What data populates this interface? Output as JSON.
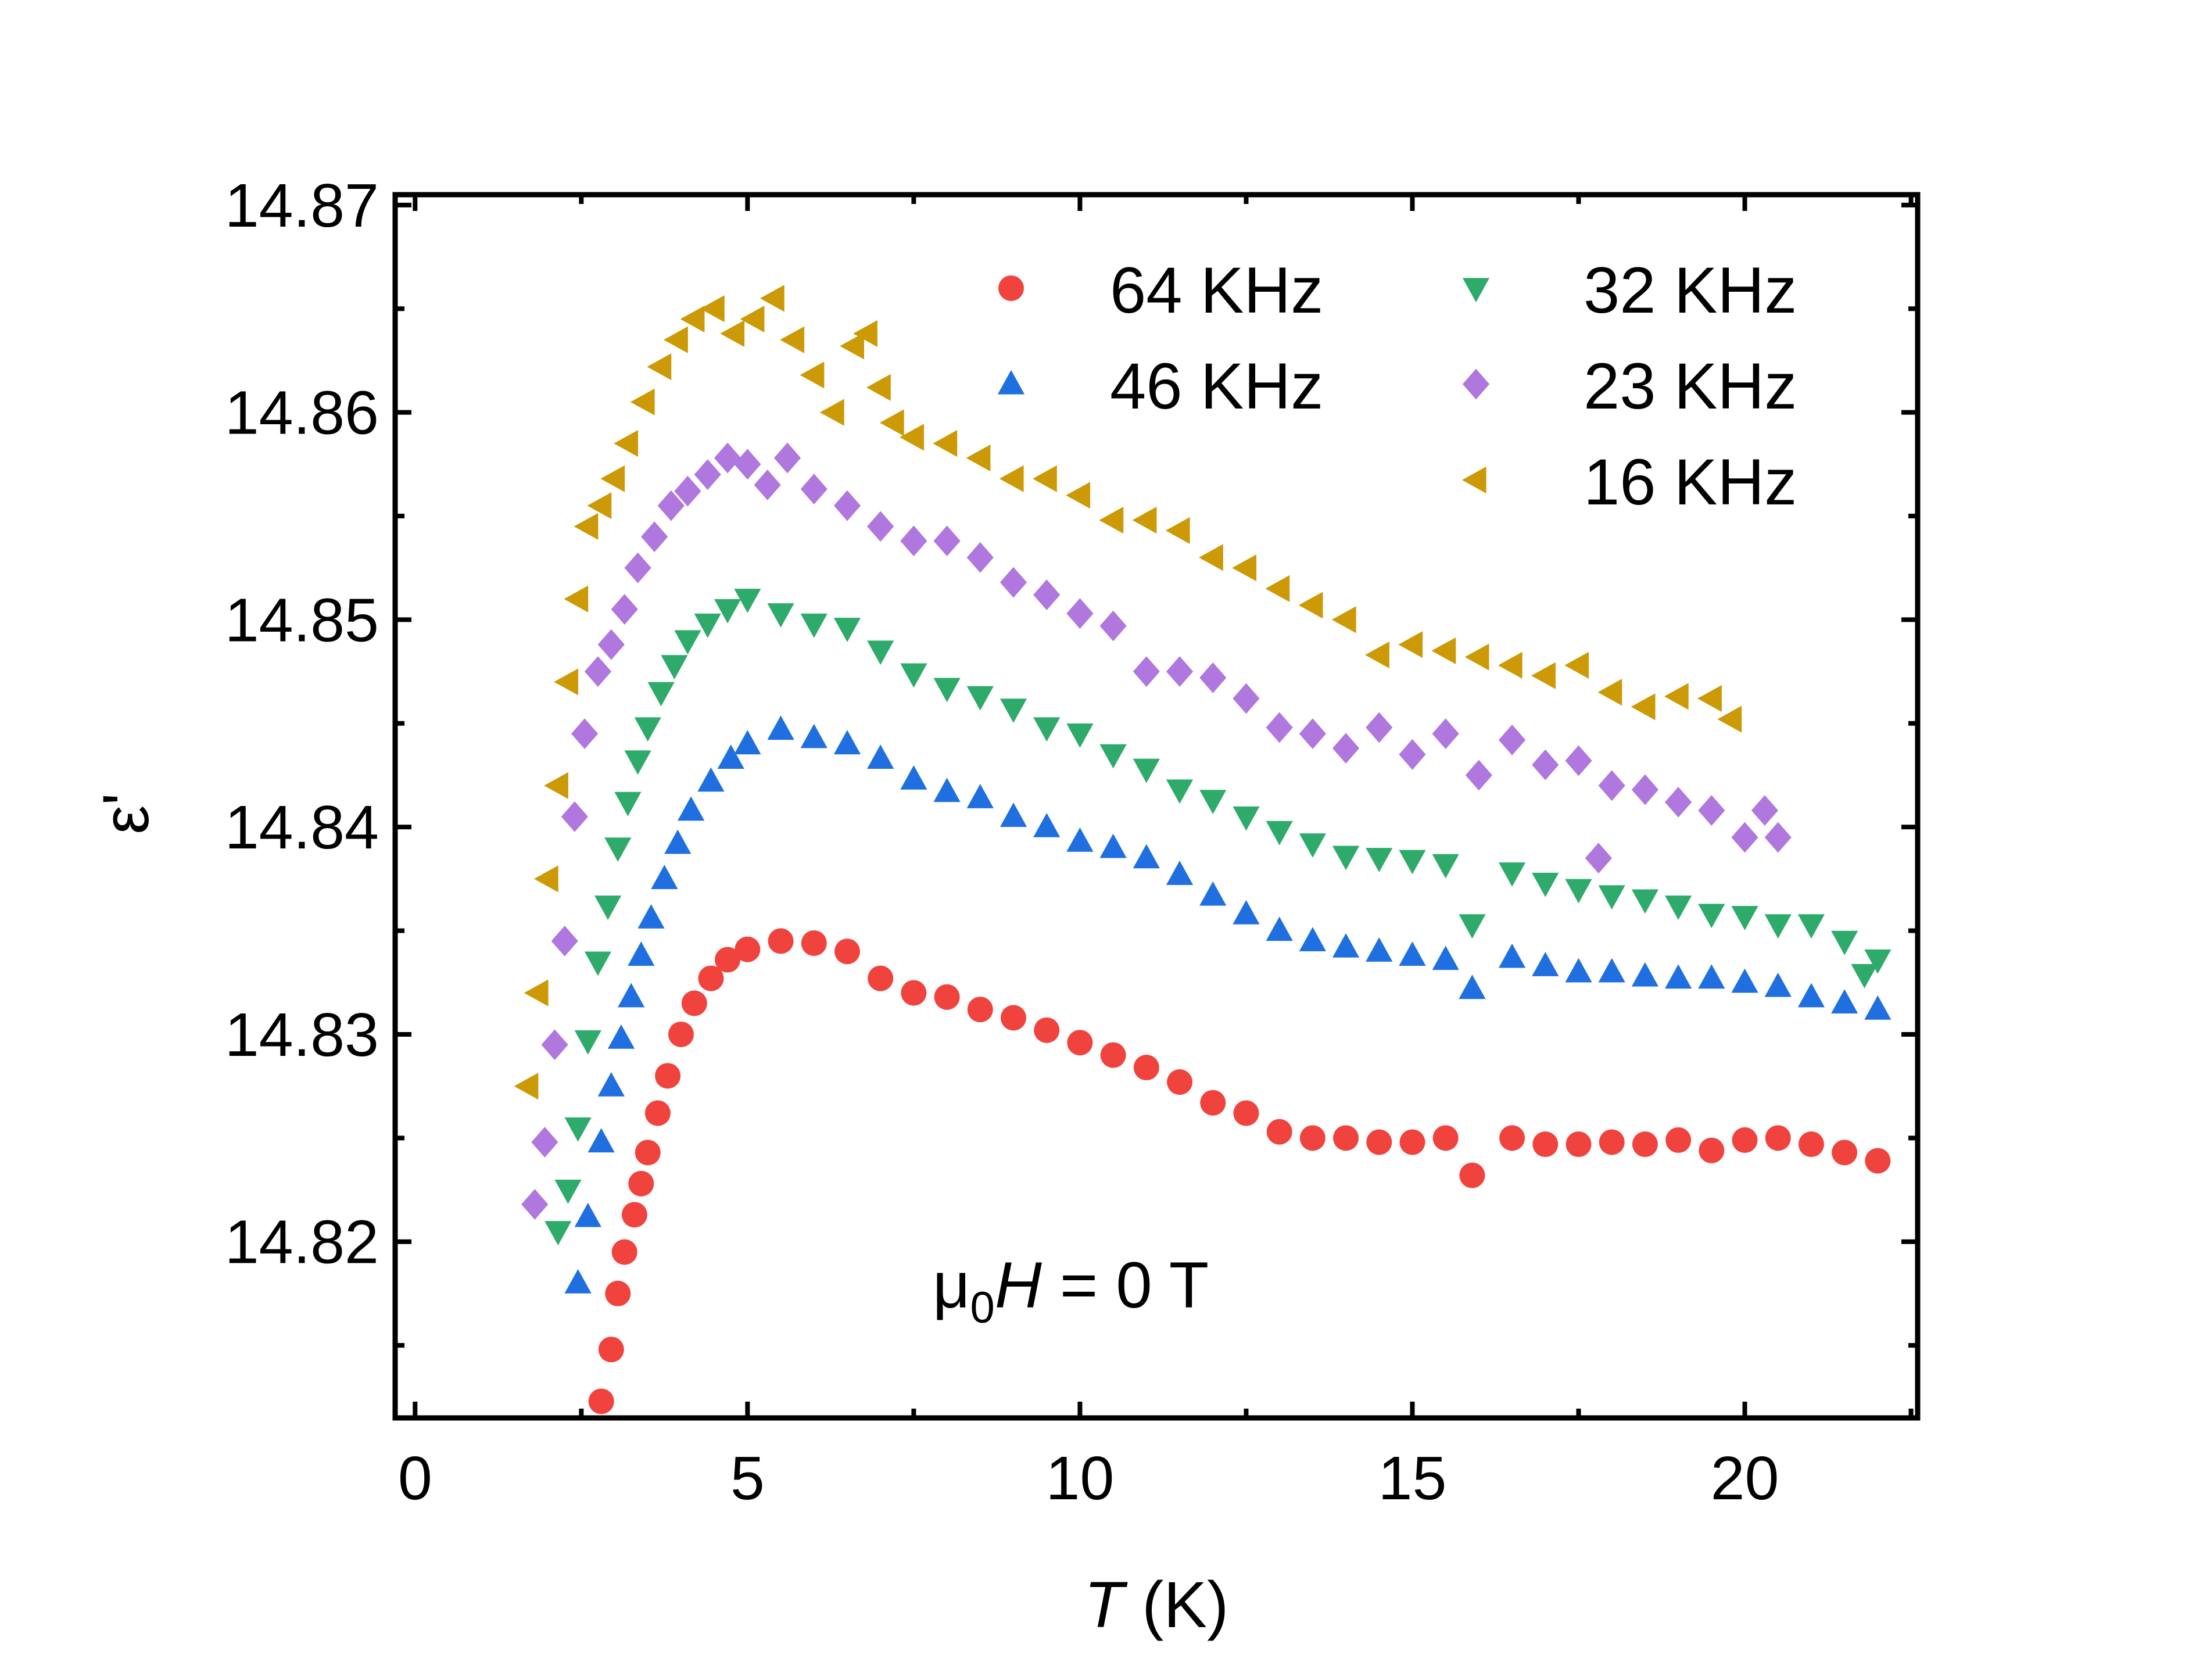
{
  "chart_data": {
    "type": "scatter",
    "xlabel": "T (K)",
    "ylabel": "ε'",
    "xlim": [
      -0.3,
      22.6
    ],
    "ylim": [
      14.8115,
      14.8705
    ],
    "xticks": [
      0,
      5,
      10,
      15,
      20
    ],
    "yticks": [
      14.82,
      14.83,
      14.84,
      14.85,
      14.86,
      14.87
    ],
    "xtick_labels": [
      "0",
      "5",
      "10",
      "15",
      "20"
    ],
    "ytick_labels": [
      "14.82",
      "14.83",
      "14.84",
      "14.85",
      "14.86",
      "14.87"
    ],
    "annotation": {
      "mu": "μ",
      "sub": "0",
      "var": "H",
      "rest": " = 0 T"
    },
    "legend_position": "top-right",
    "series": [
      {
        "name": "64 KHz",
        "marker": "circle",
        "color": "#f0433e",
        "points": [
          [
            2.8,
            14.8123
          ],
          [
            2.95,
            14.8148
          ],
          [
            3.05,
            14.8175
          ],
          [
            3.15,
            14.8195
          ],
          [
            3.3,
            14.8213
          ],
          [
            3.4,
            14.8228
          ],
          [
            3.5,
            14.8243
          ],
          [
            3.65,
            14.8262
          ],
          [
            3.8,
            14.828
          ],
          [
            4.0,
            14.83
          ],
          [
            4.2,
            14.8315
          ],
          [
            4.45,
            14.8327
          ],
          [
            4.7,
            14.8336
          ],
          [
            5.0,
            14.8341
          ],
          [
            5.5,
            14.8345
          ],
          [
            6.0,
            14.8344
          ],
          [
            6.5,
            14.834
          ],
          [
            7.0,
            14.8327
          ],
          [
            7.5,
            14.832
          ],
          [
            8.0,
            14.8318
          ],
          [
            8.5,
            14.8312
          ],
          [
            9.0,
            14.8308
          ],
          [
            9.5,
            14.8302
          ],
          [
            10.0,
            14.8296
          ],
          [
            10.5,
            14.829
          ],
          [
            11.0,
            14.8284
          ],
          [
            11.5,
            14.8277
          ],
          [
            12.0,
            14.8267
          ],
          [
            12.5,
            14.8262
          ],
          [
            13.0,
            14.8253
          ],
          [
            13.5,
            14.825
          ],
          [
            14.0,
            14.825
          ],
          [
            14.5,
            14.8248
          ],
          [
            15.0,
            14.8248
          ],
          [
            15.5,
            14.825
          ],
          [
            15.9,
            14.8232
          ],
          [
            16.5,
            14.825
          ],
          [
            17.0,
            14.8247
          ],
          [
            17.5,
            14.8247
          ],
          [
            18.0,
            14.8248
          ],
          [
            18.5,
            14.8247
          ],
          [
            19.0,
            14.8249
          ],
          [
            19.5,
            14.8244
          ],
          [
            20.0,
            14.8249
          ],
          [
            20.5,
            14.825
          ],
          [
            21.0,
            14.8247
          ],
          [
            21.5,
            14.8243
          ],
          [
            22.0,
            14.8239
          ]
        ]
      },
      {
        "name": "32 KHz",
        "marker": "triangle-down",
        "color": "#2eab6a",
        "points": [
          [
            2.15,
            14.8205
          ],
          [
            2.3,
            14.8225
          ],
          [
            2.45,
            14.8255
          ],
          [
            2.6,
            14.8297
          ],
          [
            2.75,
            14.8335
          ],
          [
            2.9,
            14.8362
          ],
          [
            3.05,
            14.839
          ],
          [
            3.2,
            14.8412
          ],
          [
            3.35,
            14.8432
          ],
          [
            3.5,
            14.8448
          ],
          [
            3.7,
            14.8465
          ],
          [
            3.9,
            14.8478
          ],
          [
            4.1,
            14.849
          ],
          [
            4.4,
            14.8498
          ],
          [
            4.7,
            14.8505
          ],
          [
            5.0,
            14.851
          ],
          [
            5.5,
            14.8503
          ],
          [
            6.0,
            14.8498
          ],
          [
            6.5,
            14.8496
          ],
          [
            7.0,
            14.8485
          ],
          [
            7.5,
            14.8474
          ],
          [
            8.0,
            14.8467
          ],
          [
            8.5,
            14.8463
          ],
          [
            9.0,
            14.8457
          ],
          [
            9.5,
            14.8448
          ],
          [
            10.0,
            14.8445
          ],
          [
            10.5,
            14.8435
          ],
          [
            11.0,
            14.8428
          ],
          [
            11.5,
            14.8418
          ],
          [
            12.0,
            14.8413
          ],
          [
            12.5,
            14.8405
          ],
          [
            13.0,
            14.8398
          ],
          [
            13.5,
            14.8392
          ],
          [
            14.0,
            14.8386
          ],
          [
            14.5,
            14.8385
          ],
          [
            15.0,
            14.8384
          ],
          [
            15.5,
            14.8382
          ],
          [
            15.9,
            14.8353
          ],
          [
            16.5,
            14.8378
          ],
          [
            17.0,
            14.8373
          ],
          [
            17.5,
            14.837
          ],
          [
            18.0,
            14.8367
          ],
          [
            18.5,
            14.8365
          ],
          [
            19.0,
            14.8362
          ],
          [
            19.5,
            14.8358
          ],
          [
            20.0,
            14.8357
          ],
          [
            20.5,
            14.8353
          ],
          [
            21.0,
            14.8353
          ],
          [
            21.5,
            14.8345
          ],
          [
            22.0,
            14.8336
          ],
          [
            21.8,
            14.8329
          ]
        ]
      },
      {
        "name": "46 KHz",
        "marker": "triangle-up",
        "color": "#1f6fe0",
        "points": [
          [
            2.45,
            14.818
          ],
          [
            2.6,
            14.8212
          ],
          [
            2.8,
            14.8248
          ],
          [
            2.95,
            14.8275
          ],
          [
            3.1,
            14.8298
          ],
          [
            3.25,
            14.8318
          ],
          [
            3.4,
            14.8338
          ],
          [
            3.55,
            14.8356
          ],
          [
            3.75,
            14.8375
          ],
          [
            3.95,
            14.8392
          ],
          [
            4.15,
            14.8408
          ],
          [
            4.45,
            14.8422
          ],
          [
            4.75,
            14.8433
          ],
          [
            5.0,
            14.844
          ],
          [
            5.5,
            14.8447
          ],
          [
            6.0,
            14.8443
          ],
          [
            6.5,
            14.844
          ],
          [
            7.0,
            14.8433
          ],
          [
            7.5,
            14.8423
          ],
          [
            8.0,
            14.8417
          ],
          [
            8.5,
            14.8414
          ],
          [
            9.0,
            14.8405
          ],
          [
            9.5,
            14.84
          ],
          [
            10.0,
            14.8393
          ],
          [
            10.5,
            14.839
          ],
          [
            11.0,
            14.8385
          ],
          [
            11.5,
            14.8377
          ],
          [
            12.0,
            14.8367
          ],
          [
            12.5,
            14.8358
          ],
          [
            13.0,
            14.835
          ],
          [
            13.5,
            14.8345
          ],
          [
            14.0,
            14.8342
          ],
          [
            14.5,
            14.834
          ],
          [
            15.0,
            14.8338
          ],
          [
            15.5,
            14.8336
          ],
          [
            15.9,
            14.8322
          ],
          [
            16.5,
            14.8337
          ],
          [
            17.0,
            14.8333
          ],
          [
            17.5,
            14.833
          ],
          [
            18.0,
            14.833
          ],
          [
            18.5,
            14.8328
          ],
          [
            19.0,
            14.8327
          ],
          [
            19.5,
            14.8327
          ],
          [
            20.0,
            14.8325
          ],
          [
            20.5,
            14.8323
          ],
          [
            21.0,
            14.8318
          ],
          [
            21.5,
            14.8315
          ],
          [
            22.0,
            14.8312
          ]
        ]
      },
      {
        "name": "23 KHz",
        "marker": "diamond",
        "color": "#b077de",
        "points": [
          [
            1.8,
            14.8218
          ],
          [
            1.95,
            14.8248
          ],
          [
            2.1,
            14.8295
          ],
          [
            2.25,
            14.8345
          ],
          [
            2.4,
            14.8405
          ],
          [
            2.55,
            14.8445
          ],
          [
            2.75,
            14.8475
          ],
          [
            2.95,
            14.8488
          ],
          [
            3.15,
            14.8505
          ],
          [
            3.35,
            14.8525
          ],
          [
            3.6,
            14.854
          ],
          [
            3.85,
            14.8555
          ],
          [
            4.1,
            14.8562
          ],
          [
            4.4,
            14.857
          ],
          [
            4.7,
            14.8578
          ],
          [
            5.0,
            14.8575
          ],
          [
            5.3,
            14.8565
          ],
          [
            5.6,
            14.8578
          ],
          [
            6.0,
            14.8563
          ],
          [
            6.5,
            14.8555
          ],
          [
            7.0,
            14.8545
          ],
          [
            7.5,
            14.8538
          ],
          [
            8.0,
            14.8538
          ],
          [
            8.5,
            14.853
          ],
          [
            9.0,
            14.8518
          ],
          [
            9.5,
            14.8512
          ],
          [
            10.0,
            14.8503
          ],
          [
            10.5,
            14.8497
          ],
          [
            11.0,
            14.8475
          ],
          [
            11.5,
            14.8475
          ],
          [
            12.0,
            14.8472
          ],
          [
            12.5,
            14.8462
          ],
          [
            13.0,
            14.8448
          ],
          [
            13.5,
            14.8445
          ],
          [
            14.0,
            14.8438
          ],
          [
            14.5,
            14.8448
          ],
          [
            15.0,
            14.8435
          ],
          [
            15.5,
            14.8445
          ],
          [
            16.0,
            14.8425
          ],
          [
            16.5,
            14.8442
          ],
          [
            17.0,
            14.843
          ],
          [
            17.5,
            14.8432
          ],
          [
            17.8,
            14.8385
          ],
          [
            18.0,
            14.842
          ],
          [
            18.5,
            14.8418
          ],
          [
            19.0,
            14.8412
          ],
          [
            19.5,
            14.8408
          ],
          [
            20.0,
            14.8395
          ],
          [
            20.3,
            14.8408
          ],
          [
            20.5,
            14.8395
          ]
        ]
      },
      {
        "name": "16 KHz",
        "marker": "triangle-left",
        "color": "#cc9a06",
        "points": [
          [
            1.7,
            14.8275
          ],
          [
            1.85,
            14.832
          ],
          [
            2.0,
            14.8375
          ],
          [
            2.15,
            14.842
          ],
          [
            2.3,
            14.847
          ],
          [
            2.45,
            14.851
          ],
          [
            2.6,
            14.8545
          ],
          [
            2.8,
            14.8555
          ],
          [
            3.0,
            14.8568
          ],
          [
            3.2,
            14.8585
          ],
          [
            3.45,
            14.8605
          ],
          [
            3.7,
            14.8622
          ],
          [
            3.95,
            14.8635
          ],
          [
            4.2,
            14.8645
          ],
          [
            4.5,
            14.865
          ],
          [
            4.8,
            14.8638
          ],
          [
            5.1,
            14.8645
          ],
          [
            5.4,
            14.8655
          ],
          [
            5.7,
            14.8635
          ],
          [
            6.0,
            14.8618
          ],
          [
            6.3,
            14.86
          ],
          [
            6.6,
            14.8632
          ],
          [
            6.8,
            14.8638
          ],
          [
            7.0,
            14.8612
          ],
          [
            7.2,
            14.8595
          ],
          [
            7.5,
            14.8588
          ],
          [
            8.0,
            14.8585
          ],
          [
            8.5,
            14.8578
          ],
          [
            9.0,
            14.8568
          ],
          [
            9.5,
            14.8568
          ],
          [
            10.0,
            14.856
          ],
          [
            10.5,
            14.8548
          ],
          [
            11.0,
            14.8548
          ],
          [
            11.5,
            14.8543
          ],
          [
            12.0,
            14.853
          ],
          [
            12.5,
            14.8525
          ],
          [
            13.0,
            14.8515
          ],
          [
            13.5,
            14.8507
          ],
          [
            14.0,
            14.85
          ],
          [
            14.5,
            14.8483
          ],
          [
            15.0,
            14.8488
          ],
          [
            15.5,
            14.8485
          ],
          [
            16.0,
            14.8482
          ],
          [
            16.5,
            14.8478
          ],
          [
            17.0,
            14.8473
          ],
          [
            17.5,
            14.8478
          ],
          [
            18.0,
            14.8465
          ],
          [
            18.5,
            14.8458
          ],
          [
            19.0,
            14.8463
          ],
          [
            19.5,
            14.8462
          ],
          [
            19.8,
            14.8452
          ]
        ]
      }
    ]
  }
}
